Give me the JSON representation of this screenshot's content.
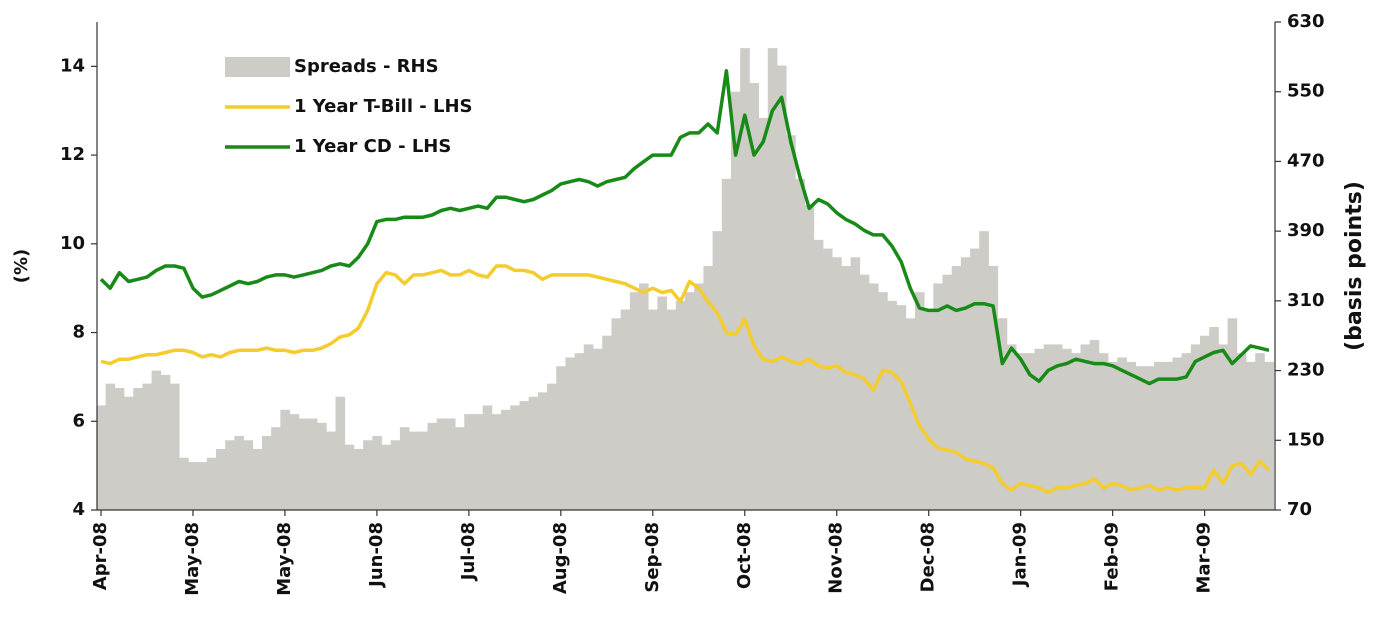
{
  "chart_data": {
    "type": "bar",
    "y_label": "(%)",
    "y2_label": "(basis points)",
    "ylim": [
      4,
      15
    ],
    "yticks": [
      4,
      6,
      8,
      10,
      12,
      14
    ],
    "y2lim": [
      70,
      630
    ],
    "y2ticks": [
      70,
      150,
      230,
      310,
      390,
      470,
      550,
      630
    ],
    "categories": [
      "Apr-08",
      null,
      null,
      null,
      null,
      null,
      null,
      null,
      null,
      null,
      "May-08",
      null,
      null,
      null,
      null,
      null,
      null,
      null,
      null,
      null,
      "May-08",
      null,
      null,
      null,
      null,
      null,
      null,
      null,
      null,
      null,
      "Jun-08",
      null,
      null,
      null,
      null,
      null,
      null,
      null,
      null,
      null,
      "Jul-08",
      null,
      null,
      null,
      null,
      null,
      null,
      null,
      null,
      null,
      "Aug-08",
      null,
      null,
      null,
      null,
      null,
      null,
      null,
      null,
      null,
      "Sep-08",
      null,
      null,
      null,
      null,
      null,
      null,
      null,
      null,
      null,
      "Oct-08",
      null,
      null,
      null,
      null,
      null,
      null,
      null,
      null,
      null,
      "Nov-08",
      null,
      null,
      null,
      null,
      null,
      null,
      null,
      null,
      null,
      "Dec-08",
      null,
      null,
      null,
      null,
      null,
      null,
      null,
      null,
      null,
      "Jan-09",
      null,
      null,
      null,
      null,
      null,
      null,
      null,
      null,
      null,
      "Feb-09",
      null,
      null,
      null,
      null,
      null,
      null,
      null,
      null,
      null,
      "Mar-09",
      null,
      null,
      null,
      null,
      null,
      null,
      null
    ],
    "series": [
      {
        "name": "Spreads - RHS",
        "type": "bar",
        "axis": "y2",
        "color": "#cdccc7",
        "values": [
          190,
          215,
          210,
          200,
          210,
          215,
          230,
          225,
          215,
          130,
          125,
          125,
          130,
          140,
          150,
          155,
          150,
          140,
          155,
          165,
          185,
          180,
          175,
          175,
          170,
          160,
          200,
          145,
          140,
          150,
          155,
          145,
          150,
          165,
          160,
          160,
          170,
          175,
          175,
          165,
          180,
          180,
          190,
          180,
          185,
          190,
          195,
          200,
          205,
          215,
          235,
          245,
          250,
          260,
          255,
          270,
          290,
          300,
          320,
          330,
          300,
          315,
          300,
          310,
          320,
          330,
          350,
          390,
          450,
          550,
          600,
          560,
          520,
          600,
          580,
          500,
          450,
          420,
          380,
          370,
          360,
          350,
          360,
          340,
          330,
          320,
          310,
          305,
          290,
          320,
          300,
          330,
          340,
          350,
          360,
          370,
          390,
          350,
          290,
          260,
          250,
          250,
          255,
          260,
          260,
          255,
          250,
          260,
          265,
          250,
          240,
          245,
          240,
          235,
          235,
          240,
          240,
          245,
          250,
          260,
          270,
          280,
          260,
          290,
          250,
          240,
          250,
          240
        ]
      },
      {
        "name": "1 Year T-Bill - LHS",
        "type": "line",
        "color": "#f5cc2e",
        "values": [
          7.35,
          7.3,
          7.4,
          7.4,
          7.45,
          7.5,
          7.5,
          7.55,
          7.6,
          7.6,
          7.55,
          7.45,
          7.5,
          7.45,
          7.55,
          7.6,
          7.6,
          7.6,
          7.65,
          7.6,
          7.6,
          7.55,
          7.6,
          7.6,
          7.65,
          7.75,
          7.9,
          7.95,
          8.1,
          8.5,
          9.1,
          9.35,
          9.3,
          9.1,
          9.3,
          9.3,
          9.35,
          9.4,
          9.3,
          9.3,
          9.4,
          9.3,
          9.25,
          9.5,
          9.5,
          9.4,
          9.4,
          9.35,
          9.2,
          9.3,
          9.3,
          9.3,
          9.3,
          9.3,
          9.25,
          9.2,
          9.15,
          9.1,
          9.0,
          8.9,
          9.0,
          8.9,
          8.95,
          8.7,
          9.15,
          9.0,
          8.7,
          8.45,
          8.0,
          7.95,
          8.3,
          7.7,
          7.4,
          7.35,
          7.45,
          7.35,
          7.3,
          7.4,
          7.25,
          7.2,
          7.25,
          7.1,
          7.05,
          6.95,
          6.7,
          7.15,
          7.1,
          6.9,
          6.4,
          5.9,
          5.6,
          5.4,
          5.35,
          5.3,
          5.15,
          5.1,
          5.05,
          4.95,
          4.6,
          4.45,
          4.6,
          4.55,
          4.5,
          4.4,
          4.5,
          4.5,
          4.55,
          4.6,
          4.7,
          4.5,
          4.6,
          4.55,
          4.45,
          4.5,
          4.55,
          4.45,
          4.5,
          4.45,
          4.5,
          4.5,
          4.5,
          4.9,
          4.6,
          5.0,
          5.05,
          4.8,
          5.1,
          4.9
        ]
      },
      {
        "name": "1 Year CD - LHS",
        "type": "line",
        "color": "#178a17",
        "values": [
          9.2,
          9.0,
          9.35,
          9.15,
          9.2,
          9.25,
          9.4,
          9.5,
          9.5,
          9.45,
          9.0,
          8.8,
          8.85,
          8.95,
          9.05,
          9.15,
          9.1,
          9.15,
          9.25,
          9.3,
          9.3,
          9.25,
          9.3,
          9.35,
          9.4,
          9.5,
          9.55,
          9.5,
          9.7,
          10.0,
          10.5,
          10.55,
          10.55,
          10.6,
          10.6,
          10.6,
          10.65,
          10.75,
          10.8,
          10.75,
          10.8,
          10.85,
          10.8,
          11.05,
          11.05,
          11.0,
          10.95,
          11.0,
          11.1,
          11.2,
          11.35,
          11.4,
          11.45,
          11.4,
          11.3,
          11.4,
          11.45,
          11.5,
          11.7,
          11.85,
          12.0,
          12.0,
          12.0,
          12.4,
          12.5,
          12.5,
          12.7,
          12.5,
          13.9,
          12.0,
          12.9,
          12.0,
          12.3,
          13.0,
          13.3,
          12.3,
          11.5,
          10.8,
          11.0,
          10.9,
          10.7,
          10.55,
          10.45,
          10.3,
          10.2,
          10.2,
          9.95,
          9.6,
          9.0,
          8.55,
          8.5,
          8.5,
          8.6,
          8.5,
          8.55,
          8.65,
          8.65,
          8.6,
          7.3,
          7.65,
          7.4,
          7.05,
          6.9,
          7.15,
          7.25,
          7.3,
          7.4,
          7.35,
          7.3,
          7.3,
          7.25,
          7.15,
          7.05,
          6.95,
          6.85,
          6.95,
          6.95,
          6.95,
          7.0,
          7.35,
          7.45,
          7.55,
          7.6,
          7.3,
          7.5,
          7.7,
          7.65,
          7.6
        ]
      }
    ]
  }
}
